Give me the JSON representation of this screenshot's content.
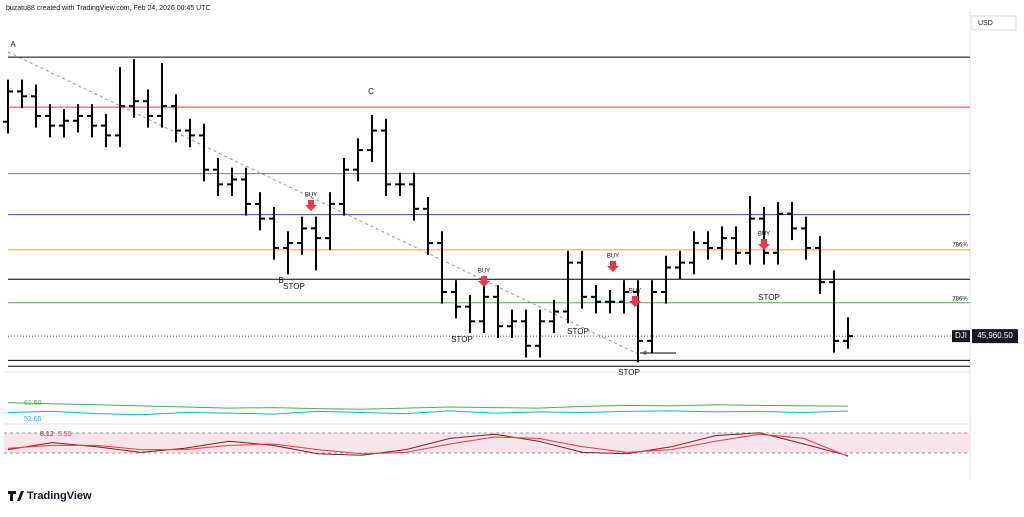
{
  "chart_data": {
    "type": "ohlc",
    "header": "buzatu88 created with TradingView.com, Feb 24, 2026 00:45 UTC",
    "currency": "USD",
    "symbol": "DJI",
    "brand": "TradingView",
    "last_price": {
      "value": 45960.5,
      "label": "45,960.50"
    },
    "ylim": [
      45400,
      50000
    ],
    "color": "#000000",
    "open": [
      48700,
      49087.5,
      49025,
      48775,
      48650,
      48712.5,
      48775,
      48650,
      48525,
      48900,
      48962.5,
      48775,
      48900,
      48587.5,
      48525,
      48087.5,
      47900,
      47962.5,
      47650,
      47462.5,
      47087.5,
      47150,
      47337.5,
      47212.5,
      47650,
      48087.5,
      48337.5,
      48587.5,
      47900,
      47900,
      47587.5,
      47150,
      46525,
      46337.5,
      46150,
      46462.5,
      46087.5,
      46150,
      45837.5,
      46150,
      46275,
      46900,
      46462.5,
      46400,
      46400,
      46525,
      45900,
      46525,
      46837.5,
      46900,
      47150,
      47087.5,
      47212.5,
      47025,
      47462.5,
      47025,
      47525,
      47337.5,
      47087.5,
      46650,
      45900
    ],
    "high": [
      49237.5,
      49237.5,
      49175,
      48925,
      48862.5,
      48925,
      48925,
      48800,
      49400,
      49500,
      49112.5,
      49450,
      49050,
      48737.5,
      48675,
      48237.5,
      48112.5,
      48112.5,
      47800,
      47612.5,
      47300,
      47487.5,
      47487.5,
      47800,
      48237.5,
      48487.5,
      48787.5,
      48737.5,
      48050,
      48050,
      47737.5,
      47300,
      46675,
      46487.5,
      46612.5,
      46612.5,
      46300,
      46300,
      46300,
      46425,
      47050,
      47050,
      46612.5,
      46550,
      46675,
      46675,
      46675,
      46987.5,
      47050,
      47300,
      47300,
      47362.5,
      47362.5,
      47750,
      47612.5,
      47675,
      47675,
      47487.5,
      47237.5,
      46800,
      46200
    ],
    "low": [
      48550,
      48875,
      48625,
      48500,
      48500,
      48562.5,
      48500,
      48375,
      48375,
      48750,
      48625,
      48625,
      48437.5,
      48375,
      47937.5,
      47750,
      47750,
      47500,
      47312.5,
      46937.5,
      46750,
      47000,
      46800,
      47062.5,
      47500,
      47937.5,
      48187.5,
      47750,
      47750,
      47437.5,
      47000,
      46375,
      46187.5,
      46000,
      46000,
      45937.5,
      45937.5,
      45687.5,
      45687.5,
      46000,
      46125,
      46312.5,
      46250,
      46250,
      46250,
      45625,
      45750,
      46375,
      46687.5,
      46750,
      46937.5,
      46937.5,
      46875,
      46875,
      46875,
      46875,
      47187.5,
      46937.5,
      46500,
      45750,
      45800
    ],
    "close": [
      49087.5,
      49025,
      48775,
      48650,
      48712.5,
      48775,
      48650,
      48525,
      48900,
      48962.5,
      48775,
      48900,
      48587.5,
      48525,
      48087.5,
      47900,
      47962.5,
      47650,
      47462.5,
      47087.5,
      47150,
      47337.5,
      47212.5,
      47650,
      48087.5,
      48337.5,
      48587.5,
      47900,
      47900,
      47587.5,
      47150,
      46525,
      46337.5,
      46150,
      46462.5,
      46087.5,
      46150,
      45837.5,
      46150,
      46275,
      46900,
      46462.5,
      46400,
      46400,
      46525,
      45900,
      46525,
      46837.5,
      46900,
      47150,
      47087.5,
      47212.5,
      47025,
      47462.5,
      47025,
      47525,
      47337.5,
      47087.5,
      46650,
      45900,
      45960.5
    ],
    "levels": [
      {
        "price": 49525,
        "color": "#000000"
      },
      {
        "price": 48887.5,
        "color": "#f23645"
      },
      {
        "price": 48037.5,
        "color": "#787b86"
      },
      {
        "price": 47512.5,
        "color": "#3f3fbf"
      },
      {
        "price": 47062.5,
        "color": "#f0a030"
      },
      {
        "price": 46687.5,
        "color": "#000000"
      },
      {
        "price": 46387.5,
        "color": "#4caf50"
      },
      {
        "price": 45650,
        "color": "#000000"
      },
      {
        "price": 45575,
        "color": "#000000"
      }
    ],
    "level_labels": [
      "786%",
      "786%"
    ],
    "annotations": [
      "A",
      "B",
      "C",
      "STOP",
      "STOP",
      "STOP",
      "STOP",
      "STOP",
      "BUY",
      "BUY",
      "BUY",
      "BUY",
      "BUY",
      "d"
    ],
    "indicators": [
      {
        "label": "61.60",
        "color": "#4caf50",
        "ylim": [
          40,
          80
        ],
        "values": [
          68,
          66,
          64,
          62,
          60,
          58,
          59,
          57,
          56,
          58,
          60,
          59,
          58,
          61,
          63,
          62,
          64,
          63,
          62,
          61.6
        ]
      },
      {
        "label": "52.65",
        "color": "#00bcd4",
        "ylim": [
          40,
          80
        ],
        "values": [
          50,
          52,
          48,
          46,
          50,
          49,
          47,
          52,
          50,
          48,
          53,
          49,
          51,
          50,
          52,
          53,
          51,
          52,
          50,
          52.65
        ]
      },
      {
        "label": "8.12",
        "color": "#7a1f1f",
        "ylim": [
          0,
          100
        ],
        "values": [
          30,
          55,
          40,
          20,
          35,
          60,
          45,
          15,
          10,
          30,
          70,
          85,
          60,
          20,
          15,
          40,
          80,
          90,
          50,
          8.12
        ]
      },
      {
        "label": "5.55",
        "color": "#f23645",
        "ylim": [
          0,
          100
        ],
        "values": [
          35,
          45,
          45,
          30,
          30,
          45,
          50,
          30,
          15,
          20,
          50,
          75,
          70,
          40,
          20,
          30,
          60,
          85,
          70,
          5.55
        ]
      }
    ]
  }
}
